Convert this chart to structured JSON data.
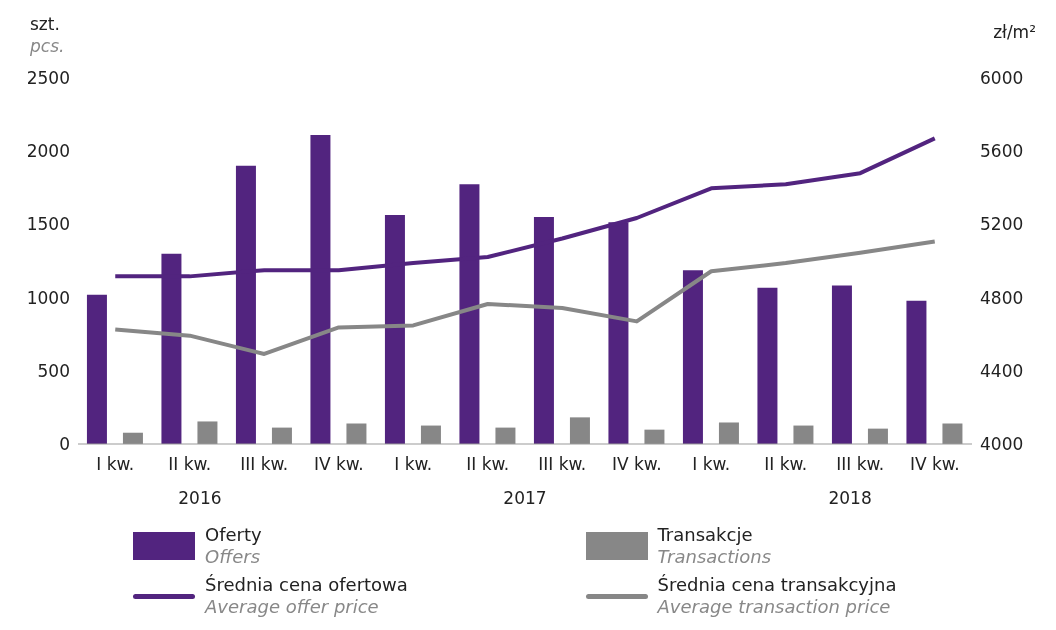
{
  "chart_data": {
    "type": "bar",
    "ylabel": "szt.\npcs.",
    "y2label": "zł/m²",
    "categories": [
      "I kw.",
      "II kw.",
      "III kw.",
      "IV kw.",
      "I kw.",
      "II kw.",
      "III kw.",
      "IV kw.",
      "I kw.",
      "II kw.",
      "III kw.",
      "IV kw."
    ],
    "annotations": [
      "2016",
      "2017",
      "2018"
    ],
    "series": [
      {
        "name": "Oferty\nOffers",
        "color": "#52247f",
        "values": [
          1020,
          1300,
          1900,
          2110,
          1565,
          1775,
          1550,
          1515,
          1187,
          1068,
          1082,
          978
        ]
      },
      {
        "name": "Transakcje\nTransactions",
        "color": "#878787",
        "values": [
          77,
          154,
          112,
          140,
          126,
          112,
          182,
          98,
          147,
          126,
          105,
          140
        ]
      },
      {
        "name": "Średnia cena ofertowa\nAverage offer price",
        "type": "line",
        "axis": "y2",
        "color": "#52247f",
        "values": [
          4916,
          4916,
          4950,
          4950,
          4989,
          5022,
          5123,
          5235,
          5397,
          5419,
          5480,
          5670
        ]
      },
      {
        "name": "Średnia cena transakcyjna\nAverage transaction price",
        "type": "line",
        "axis": "y2",
        "color": "#878787",
        "values": [
          4626,
          4592,
          4492,
          4637,
          4648,
          4765,
          4743,
          4670,
          4944,
          4989,
          5045,
          5106
        ]
      }
    ],
    "ylim": [
      0,
      2500
    ],
    "yticks": [
      0,
      500,
      1000,
      1500,
      2000,
      2500
    ],
    "y2lim": [
      4000,
      6000
    ],
    "y2ticks": [
      4000,
      4400,
      4800,
      5200,
      5600,
      6000
    ],
    "legend": "bottom",
    "marker": "none",
    "grid": false
  }
}
